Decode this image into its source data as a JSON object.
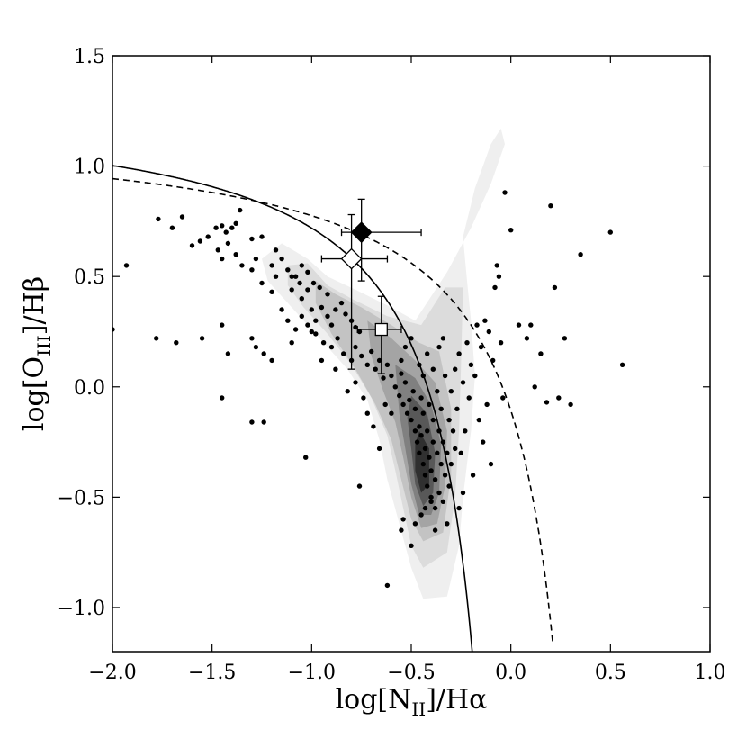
{
  "chart_data": {
    "type": "scatter",
    "title": "",
    "xlabel": {
      "main": "log[N",
      "sub": "II",
      "tail": "]/Hα"
    },
    "ylabel": {
      "main": "log[O",
      "sub": "III",
      "tail": "]/Hβ"
    },
    "xlim": [
      -2.0,
      1.0
    ],
    "ylim": [
      -1.2,
      1.5
    ],
    "x_ticks": [
      "−2.0",
      "−1.5",
      "−1.0",
      "−0.5",
      "0.0",
      "0.5",
      "1.0"
    ],
    "x_tick_values": [
      -2.0,
      -1.5,
      -1.0,
      -0.5,
      0.0,
      0.5,
      1.0
    ],
    "y_ticks": [
      "−1.0",
      "−0.5",
      "0.0",
      "0.5",
      "1.0",
      "1.5"
    ],
    "y_tick_values": [
      -1.0,
      -0.5,
      0.0,
      0.5,
      1.0,
      1.5
    ],
    "grid": false,
    "colors": {
      "points": "#000000",
      "contour_light": "#eeeeee",
      "contour_dark": "#222222"
    },
    "curves": {
      "solid_curve": {
        "style": "solid",
        "formula": "0.61/(x-0.05)+1.3",
        "x_max": -0.19
      },
      "dashed_curve": {
        "style": "dashed",
        "formula": "0.61/(x-0.47)+1.19",
        "x_max": 0.21
      }
    },
    "contours": [
      [
        [
          -1.25,
          0.58
        ],
        [
          -1.15,
          0.65
        ],
        [
          -1.02,
          0.58
        ],
        [
          -0.92,
          0.5
        ],
        [
          -0.78,
          0.44
        ],
        [
          -0.6,
          0.36
        ],
        [
          -0.48,
          0.3
        ],
        [
          -0.32,
          0.52
        ],
        [
          -0.2,
          0.72
        ],
        [
          -0.1,
          0.92
        ],
        [
          -0.03,
          1.1
        ],
        [
          -0.05,
          1.17
        ],
        [
          -0.1,
          1.1
        ],
        [
          -0.18,
          0.9
        ],
        [
          -0.24,
          0.68
        ],
        [
          -0.22,
          0.48
        ],
        [
          -0.2,
          0.3
        ],
        [
          -0.18,
          0.05
        ],
        [
          -0.2,
          -0.2
        ],
        [
          -0.24,
          -0.5
        ],
        [
          -0.26,
          -0.72
        ],
        [
          -0.32,
          -0.95
        ],
        [
          -0.44,
          -0.96
        ],
        [
          -0.5,
          -0.82
        ],
        [
          -0.56,
          -0.62
        ],
        [
          -0.62,
          -0.42
        ],
        [
          -0.66,
          -0.24
        ],
        [
          -0.72,
          -0.06
        ],
        [
          -0.82,
          0.08
        ],
        [
          -0.96,
          0.22
        ],
        [
          -1.1,
          0.36
        ],
        [
          -1.22,
          0.48
        ],
        [
          -1.25,
          0.58
        ]
      ],
      [
        [
          -1.12,
          0.55
        ],
        [
          -1.02,
          0.56
        ],
        [
          -0.92,
          0.46
        ],
        [
          -0.8,
          0.4
        ],
        [
          -0.62,
          0.32
        ],
        [
          -0.45,
          0.28
        ],
        [
          -0.33,
          0.45
        ],
        [
          -0.24,
          0.45
        ],
        [
          -0.25,
          0.1
        ],
        [
          -0.26,
          -0.2
        ],
        [
          -0.28,
          -0.5
        ],
        [
          -0.32,
          -0.75
        ],
        [
          -0.44,
          -0.82
        ],
        [
          -0.5,
          -0.72
        ],
        [
          -0.54,
          -0.55
        ],
        [
          -0.58,
          -0.38
        ],
        [
          -0.62,
          -0.22
        ],
        [
          -0.7,
          -0.05
        ],
        [
          -0.8,
          0.1
        ],
        [
          -0.92,
          0.24
        ],
        [
          -1.04,
          0.36
        ],
        [
          -1.12,
          0.46
        ],
        [
          -1.12,
          0.55
        ]
      ],
      [
        [
          -0.98,
          0.48
        ],
        [
          -0.88,
          0.42
        ],
        [
          -0.75,
          0.36
        ],
        [
          -0.6,
          0.28
        ],
        [
          -0.46,
          0.2
        ],
        [
          -0.36,
          0.16
        ],
        [
          -0.3,
          -0.1
        ],
        [
          -0.3,
          -0.4
        ],
        [
          -0.34,
          -0.66
        ],
        [
          -0.44,
          -0.7
        ],
        [
          -0.5,
          -0.6
        ],
        [
          -0.55,
          -0.42
        ],
        [
          -0.6,
          -0.24
        ],
        [
          -0.68,
          -0.08
        ],
        [
          -0.78,
          0.08
        ],
        [
          -0.9,
          0.24
        ],
        [
          -0.98,
          0.38
        ],
        [
          -0.98,
          0.48
        ]
      ],
      [
        [
          -0.72,
          0.3
        ],
        [
          -0.6,
          0.22
        ],
        [
          -0.48,
          0.12
        ],
        [
          -0.38,
          0.02
        ],
        [
          -0.32,
          -0.2
        ],
        [
          -0.33,
          -0.45
        ],
        [
          -0.37,
          -0.62
        ],
        [
          -0.45,
          -0.64
        ],
        [
          -0.5,
          -0.5
        ],
        [
          -0.54,
          -0.32
        ],
        [
          -0.58,
          -0.16
        ],
        [
          -0.64,
          -0.02
        ],
        [
          -0.7,
          0.14
        ],
        [
          -0.72,
          0.3
        ]
      ],
      [
        [
          -0.58,
          0.1
        ],
        [
          -0.48,
          0.04
        ],
        [
          -0.4,
          -0.08
        ],
        [
          -0.35,
          -0.26
        ],
        [
          -0.36,
          -0.48
        ],
        [
          -0.4,
          -0.58
        ],
        [
          -0.46,
          -0.58
        ],
        [
          -0.5,
          -0.44
        ],
        [
          -0.53,
          -0.28
        ],
        [
          -0.56,
          -0.12
        ],
        [
          -0.58,
          0.1
        ]
      ],
      [
        [
          -0.5,
          -0.04
        ],
        [
          -0.42,
          -0.12
        ],
        [
          -0.38,
          -0.3
        ],
        [
          -0.39,
          -0.48
        ],
        [
          -0.44,
          -0.54
        ],
        [
          -0.48,
          -0.44
        ],
        [
          -0.5,
          -0.28
        ],
        [
          -0.52,
          -0.14
        ],
        [
          -0.5,
          -0.04
        ]
      ],
      [
        [
          -0.46,
          -0.2
        ],
        [
          -0.41,
          -0.28
        ],
        [
          -0.41,
          -0.44
        ],
        [
          -0.45,
          -0.48
        ],
        [
          -0.48,
          -0.38
        ],
        [
          -0.48,
          -0.26
        ],
        [
          -0.46,
          -0.2
        ]
      ]
    ],
    "contour_fills": [
      "#efefef",
      "#dcdcdc",
      "#c3c3c3",
      "#a4a4a4",
      "#808080",
      "#585858",
      "#303030"
    ],
    "highlighted_points": [
      {
        "name": "filled-diamond",
        "marker": "diamond",
        "fill": "#000000",
        "x": -0.75,
        "y": 0.7,
        "xerr": [
          0.1,
          0.3
        ],
        "yerr": [
          0.22,
          0.15
        ]
      },
      {
        "name": "open-diamond",
        "marker": "diamond",
        "fill": "#ffffff",
        "x": -0.8,
        "y": 0.58,
        "xerr": [
          0.15,
          0.18
        ],
        "yerr": [
          0.5,
          0.2
        ]
      },
      {
        "name": "open-square",
        "marker": "square",
        "fill": "#ffffff",
        "x": -0.65,
        "y": 0.26,
        "xerr": [
          0.12,
          0.1
        ],
        "yerr": [
          0.2,
          0.15
        ]
      }
    ],
    "points": [
      [
        -2.0,
        0.26
      ],
      [
        -1.93,
        0.55
      ],
      [
        -1.77,
        0.76
      ],
      [
        -1.7,
        0.72
      ],
      [
        -1.65,
        0.77
      ],
      [
        -1.6,
        0.64
      ],
      [
        -1.56,
        0.66
      ],
      [
        -1.52,
        0.68
      ],
      [
        -1.48,
        0.72
      ],
      [
        -1.45,
        0.73
      ],
      [
        -1.43,
        0.7
      ],
      [
        -1.4,
        0.72
      ],
      [
        -1.38,
        0.74
      ],
      [
        -1.36,
        0.8
      ],
      [
        -1.42,
        0.65
      ],
      [
        -1.38,
        0.6
      ],
      [
        -1.3,
        0.67
      ],
      [
        -1.25,
        0.68
      ],
      [
        -1.47,
        0.62
      ],
      [
        -1.45,
        0.58
      ],
      [
        -1.35,
        0.55
      ],
      [
        -1.3,
        0.53
      ],
      [
        -1.28,
        0.58
      ],
      [
        -1.2,
        0.55
      ],
      [
        -1.18,
        0.62
      ],
      [
        -1.15,
        0.58
      ],
      [
        -1.12,
        0.53
      ],
      [
        -1.08,
        0.5
      ],
      [
        -1.05,
        0.55
      ],
      [
        -1.02,
        0.52
      ],
      [
        -1.25,
        0.47
      ],
      [
        -1.2,
        0.43
      ],
      [
        -1.1,
        0.44
      ],
      [
        -1.05,
        0.4
      ],
      [
        -1.0,
        0.35
      ],
      [
        -0.98,
        0.3
      ],
      [
        -0.95,
        0.36
      ],
      [
        -0.92,
        0.32
      ],
      [
        -0.9,
        0.28
      ],
      [
        -0.88,
        0.35
      ],
      [
        -0.85,
        0.38
      ],
      [
        -0.83,
        0.33
      ],
      [
        -0.8,
        0.3
      ],
      [
        -0.78,
        0.27
      ],
      [
        -0.76,
        0.25
      ],
      [
        -1.15,
        0.35
      ],
      [
        -1.12,
        0.3
      ],
      [
        -1.08,
        0.26
      ],
      [
        -1.05,
        0.32
      ],
      [
        -1.02,
        0.28
      ],
      [
        -0.98,
        0.24
      ],
      [
        -0.94,
        0.2
      ],
      [
        -0.9,
        0.18
      ],
      [
        -0.87,
        0.22
      ],
      [
        -0.84,
        0.15
      ],
      [
        -0.8,
        0.12
      ],
      [
        -0.78,
        0.18
      ],
      [
        -0.75,
        0.14
      ],
      [
        -0.72,
        0.1
      ],
      [
        -0.7,
        0.16
      ],
      [
        -0.68,
        0.08
      ],
      [
        -0.66,
        0.12
      ],
      [
        -0.64,
        0.04
      ],
      [
        -0.62,
        0.1
      ],
      [
        -0.6,
        0.05
      ],
      [
        -0.58,
        0.0
      ],
      [
        -0.56,
        -0.04
      ],
      [
        -0.55,
        0.06
      ],
      [
        -0.54,
        -0.08
      ],
      [
        -0.53,
        0.02
      ],
      [
        -0.52,
        -0.12
      ],
      [
        -0.51,
        -0.06
      ],
      [
        -0.5,
        -0.15
      ],
      [
        -0.49,
        -0.02
      ],
      [
        -0.48,
        -0.2
      ],
      [
        -0.48,
        -0.1
      ],
      [
        -0.47,
        -0.25
      ],
      [
        -0.46,
        -0.18
      ],
      [
        -0.46,
        -0.3
      ],
      [
        -0.45,
        -0.05
      ],
      [
        -0.45,
        -0.22
      ],
      [
        -0.44,
        -0.35
      ],
      [
        -0.44,
        -0.12
      ],
      [
        -0.43,
        -0.28
      ],
      [
        -0.43,
        -0.4
      ],
      [
        -0.42,
        -0.2
      ],
      [
        -0.42,
        -0.45
      ],
      [
        -0.41,
        -0.32
      ],
      [
        -0.41,
        -0.08
      ],
      [
        -0.4,
        -0.38
      ],
      [
        -0.4,
        -0.5
      ],
      [
        -0.39,
        -0.25
      ],
      [
        -0.39,
        -0.15
      ],
      [
        -0.38,
        -0.42
      ],
      [
        -0.38,
        -0.55
      ],
      [
        -0.37,
        -0.3
      ],
      [
        -0.37,
        -0.02
      ],
      [
        -0.36,
        -0.48
      ],
      [
        -0.36,
        -0.2
      ],
      [
        -0.35,
        -0.35
      ],
      [
        -0.35,
        -0.1
      ],
      [
        -0.34,
        -0.52
      ],
      [
        -0.34,
        -0.25
      ],
      [
        -0.33,
        -0.4
      ],
      [
        -0.33,
        0.05
      ],
      [
        -0.32,
        -0.3
      ],
      [
        -0.31,
        -0.45
      ],
      [
        -0.31,
        -0.15
      ],
      [
        -0.3,
        -0.02
      ],
      [
        -0.3,
        -0.35
      ],
      [
        -0.29,
        -0.2
      ],
      [
        -0.28,
        0.08
      ],
      [
        -0.28,
        -0.28
      ],
      [
        -0.27,
        -0.1
      ],
      [
        -0.26,
        0.15
      ],
      [
        -0.25,
        -0.3
      ],
      [
        -0.24,
        0.02
      ],
      [
        -0.23,
        -0.2
      ],
      [
        -0.22,
        0.2
      ],
      [
        -0.21,
        -0.05
      ],
      [
        -0.2,
        0.1
      ],
      [
        -0.19,
        -0.4
      ],
      [
        -0.18,
        0.05
      ],
      [
        -0.17,
        0.28
      ],
      [
        -0.16,
        -0.15
      ],
      [
        -0.15,
        0.18
      ],
      [
        -0.14,
        -0.25
      ],
      [
        -0.13,
        0.3
      ],
      [
        -0.12,
        -0.08
      ],
      [
        -0.11,
        0.25
      ],
      [
        -0.1,
        -0.35
      ],
      [
        -0.09,
        0.12
      ],
      [
        -0.08,
        0.45
      ],
      [
        -0.07,
        0.55
      ],
      [
        -0.06,
        0.5
      ],
      [
        -0.05,
        0.2
      ],
      [
        -0.04,
        -0.05
      ],
      [
        -0.03,
        0.88
      ],
      [
        0.0,
        0.71
      ],
      [
        0.04,
        0.28
      ],
      [
        0.08,
        0.22
      ],
      [
        0.1,
        0.28
      ],
      [
        0.12,
        0.0
      ],
      [
        0.15,
        0.15
      ],
      [
        0.18,
        -0.07
      ],
      [
        0.2,
        0.82
      ],
      [
        0.22,
        0.45
      ],
      [
        0.24,
        -0.05
      ],
      [
        0.27,
        0.22
      ],
      [
        0.3,
        -0.08
      ],
      [
        0.35,
        0.6
      ],
      [
        0.5,
        0.7
      ],
      [
        0.56,
        0.1
      ],
      [
        -1.78,
        0.22
      ],
      [
        -1.68,
        0.2
      ],
      [
        -1.55,
        0.22
      ],
      [
        -1.45,
        0.28
      ],
      [
        -1.42,
        0.15
      ],
      [
        -1.3,
        0.22
      ],
      [
        -1.28,
        0.18
      ],
      [
        -1.24,
        0.15
      ],
      [
        -1.2,
        0.12
      ],
      [
        -1.1,
        0.2
      ],
      [
        -1.0,
        0.25
      ],
      [
        -0.95,
        0.12
      ],
      [
        -0.88,
        0.08
      ],
      [
        -0.82,
        -0.02
      ],
      [
        -0.78,
        0.02
      ],
      [
        -0.74,
        -0.05
      ],
      [
        -0.72,
        -0.12
      ],
      [
        -0.69,
        -0.18
      ],
      [
        -0.66,
        -0.28
      ],
      [
        -0.63,
        -0.08
      ],
      [
        -0.6,
        -0.12
      ],
      [
        -1.45,
        -0.05
      ],
      [
        -1.3,
        -0.16
      ],
      [
        -1.24,
        -0.16
      ],
      [
        -1.03,
        -0.32
      ],
      [
        -0.76,
        -0.45
      ],
      [
        -0.62,
        -0.9
      ],
      [
        -0.55,
        -0.65
      ],
      [
        -0.54,
        -0.6
      ],
      [
        -0.5,
        -0.72
      ],
      [
        -0.48,
        -0.62
      ],
      [
        -0.45,
        -0.58
      ],
      [
        -0.43,
        -0.55
      ],
      [
        -0.4,
        -0.52
      ],
      [
        -0.38,
        -0.65
      ],
      [
        -0.32,
        -0.62
      ],
      [
        -0.26,
        -0.55
      ],
      [
        -0.24,
        -0.48
      ],
      [
        -0.55,
        0.12
      ],
      [
        -0.53,
        0.18
      ],
      [
        -0.5,
        0.22
      ],
      [
        -0.46,
        0.1
      ],
      [
        -0.44,
        0.05
      ],
      [
        -0.42,
        0.15
      ],
      [
        -0.39,
        0.08
      ],
      [
        -0.36,
        0.18
      ],
      [
        -0.34,
        0.22
      ],
      [
        -0.92,
        0.42
      ],
      [
        -0.96,
        0.45
      ],
      [
        -0.99,
        0.47
      ],
      [
        -1.02,
        0.44
      ],
      [
        -1.06,
        0.47
      ],
      [
        -1.1,
        0.5
      ],
      [
        -1.18,
        0.5
      ]
    ]
  }
}
